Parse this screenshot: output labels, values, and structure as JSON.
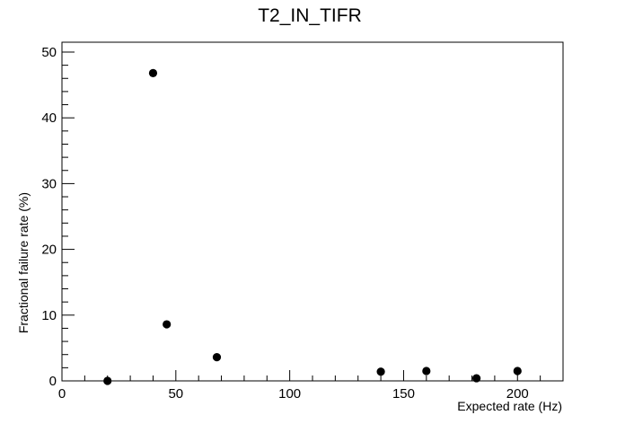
{
  "chart_data": {
    "type": "scatter",
    "title": "T2_IN_TIFR",
    "xlabel": "Expected rate (Hz)",
    "ylabel": "Fractional failure rate (%)",
    "xlim": [
      0,
      220
    ],
    "ylim": [
      0,
      51.5
    ],
    "x_ticks": [
      0,
      50,
      100,
      150,
      200
    ],
    "y_ticks": [
      0,
      10,
      20,
      30,
      40,
      50
    ],
    "grid": false,
    "legend": "none",
    "marker_color": "#000000",
    "series": [
      {
        "x": [
          20,
          40,
          46,
          68,
          140,
          160,
          182,
          200
        ],
        "y": [
          0.0,
          46.8,
          8.6,
          3.6,
          1.4,
          1.5,
          0.4,
          1.5
        ]
      }
    ]
  }
}
